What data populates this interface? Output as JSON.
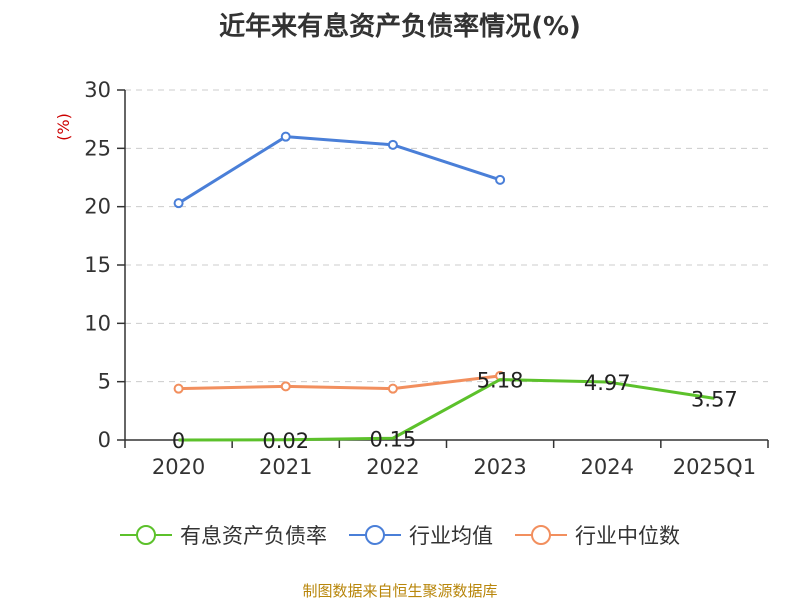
{
  "chart_data": {
    "type": "line",
    "title": "近年来有息资产负债率情况(%)",
    "ylabel": "(%)",
    "xlabel": "",
    "categories": [
      "2020",
      "2021",
      "2022",
      "2023",
      "2024",
      "2025Q1"
    ],
    "ylim": [
      0,
      30
    ],
    "yticks": [
      0,
      5,
      10,
      15,
      20,
      25,
      30
    ],
    "grid": "horizontal-dashed",
    "legend_position": "bottom",
    "series": [
      {
        "name": "有息资产负债率",
        "color": "#5cc12b",
        "values": [
          0,
          0.02,
          0.15,
          5.18,
          4.97,
          3.57
        ],
        "labels": [
          "0",
          "0.02",
          "0.15",
          "5.18",
          "4.97",
          "3.57"
        ]
      },
      {
        "name": "行业均值",
        "color": "#4a7fd8",
        "values": [
          20.3,
          26.0,
          25.3,
          22.3,
          null,
          null
        ]
      },
      {
        "name": "行业中位数",
        "color": "#f28f5e",
        "values": [
          4.4,
          4.6,
          4.4,
          5.5,
          null,
          null
        ]
      }
    ]
  },
  "source": "制图数据来自恒生聚源数据库"
}
